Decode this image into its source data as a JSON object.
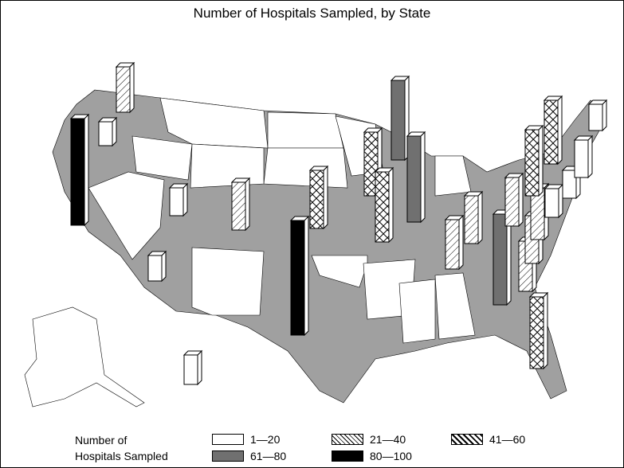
{
  "title": "Number of Hospitals Sampled, by State",
  "legend": {
    "title_line1": "Number of",
    "title_line2": "Hospitals Sampled",
    "items": [
      {
        "label": "1—20",
        "pattern": "white"
      },
      {
        "label": "21—40",
        "pattern": "hatch"
      },
      {
        "label": "41—60",
        "pattern": "crosshatch"
      },
      {
        "label": "61—80",
        "pattern": "gray"
      },
      {
        "label": "80—100",
        "pattern": "black"
      }
    ]
  },
  "colors": {
    "map_fill": "#a0a0a0",
    "gray_bar": "#707070",
    "black_bar": "#000000"
  },
  "bars": [
    {
      "category": "21-40"
    },
    {
      "category": "80-100"
    },
    {
      "category": "1-20"
    },
    {
      "category": "1-20"
    },
    {
      "category": "21-40"
    },
    {
      "category": "1-20"
    },
    {
      "category": "80-100"
    },
    {
      "category": "41-60"
    },
    {
      "category": "41-60"
    },
    {
      "category": "41-60"
    },
    {
      "category": "61-80"
    },
    {
      "category": "61-80"
    },
    {
      "category": "21-40"
    },
    {
      "category": "21-40"
    },
    {
      "category": "61-80"
    },
    {
      "category": "41-60"
    },
    {
      "category": "21-40"
    },
    {
      "category": "21-40"
    },
    {
      "category": "21-40"
    },
    {
      "category": "21-40"
    },
    {
      "category": "1-20"
    },
    {
      "category": "41-60"
    },
    {
      "category": "41-60"
    },
    {
      "category": "1-20"
    },
    {
      "category": "1-20"
    },
    {
      "category": "1-20"
    },
    {
      "category": "1-20"
    }
  ]
}
